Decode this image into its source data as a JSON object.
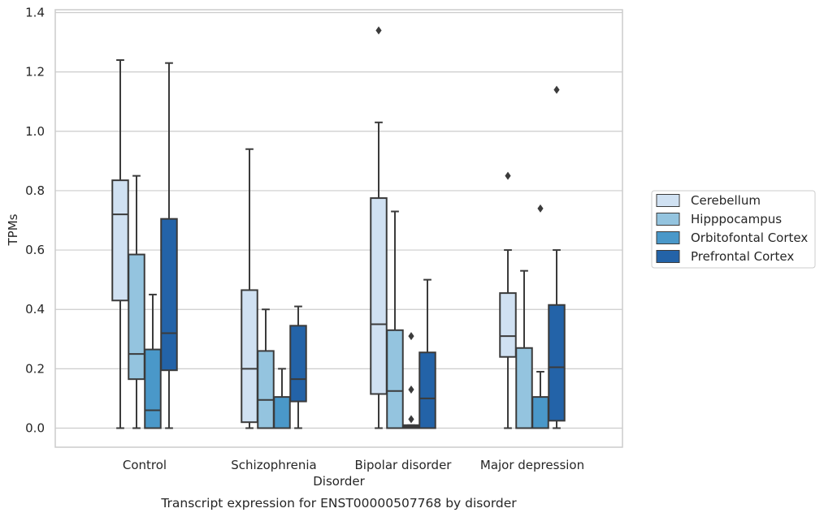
{
  "chart_data": {
    "type": "box",
    "caption": "Transcript expression for ENST00000507768 by disorder",
    "xlabel": "Disorder",
    "ylabel": "TPMs",
    "ylim": [
      -0.063,
      1.41
    ],
    "yticks": [
      "0.0",
      "0.2",
      "0.4",
      "0.6",
      "0.8",
      "1.0",
      "1.2",
      "1.4"
    ],
    "ytick_values": [
      0,
      0.2,
      0.4,
      0.6,
      0.8,
      1.0,
      1.2,
      1.4
    ],
    "grid": true,
    "legend_position": "right",
    "categories": [
      "Control",
      "Schizophrenia",
      "Bipolar disorder",
      "Major depression"
    ],
    "series": [
      {
        "name": "Cerebellum",
        "color": "#d0e1f2",
        "boxes": [
          {
            "whislo": 0.0,
            "q1": 0.43,
            "med": 0.72,
            "q3": 0.835,
            "whishi": 1.24,
            "fliers": []
          },
          {
            "whislo": 0.0,
            "q1": 0.02,
            "med": 0.2,
            "q3": 0.465,
            "whishi": 0.94,
            "fliers": []
          },
          {
            "whislo": 0.0,
            "q1": 0.115,
            "med": 0.35,
            "q3": 0.775,
            "whishi": 1.03,
            "fliers": [
              1.34
            ]
          },
          {
            "whislo": 0.0,
            "q1": 0.24,
            "med": 0.31,
            "q3": 0.455,
            "whishi": 0.6,
            "fliers": [
              0.85
            ]
          }
        ]
      },
      {
        "name": "Hipppocampus",
        "color": "#94c4df",
        "boxes": [
          {
            "whislo": 0.0,
            "q1": 0.165,
            "med": 0.25,
            "q3": 0.585,
            "whishi": 0.85,
            "fliers": []
          },
          {
            "whislo": 0.0,
            "q1": 0.0,
            "med": 0.095,
            "q3": 0.26,
            "whishi": 0.4,
            "fliers": []
          },
          {
            "whislo": 0.0,
            "q1": 0.0,
            "med": 0.125,
            "q3": 0.33,
            "whishi": 0.73,
            "fliers": []
          },
          {
            "whislo": 0.0,
            "q1": 0.0,
            "med": 0.0,
            "q3": 0.27,
            "whishi": 0.53,
            "fliers": []
          }
        ]
      },
      {
        "name": "Orbitofontal Cortex",
        "color": "#4a98c9",
        "boxes": [
          {
            "whislo": 0.0,
            "q1": 0.0,
            "med": 0.06,
            "q3": 0.265,
            "whishi": 0.45,
            "fliers": []
          },
          {
            "whislo": 0.0,
            "q1": 0.0,
            "med": 0.0,
            "q3": 0.105,
            "whishi": 0.2,
            "fliers": []
          },
          {
            "whislo": 0.0,
            "q1": 0.0,
            "med": 0.005,
            "q3": 0.01,
            "whishi": 0.01,
            "fliers": [
              0.31,
              0.13,
              0.03
            ]
          },
          {
            "whislo": 0.0,
            "q1": 0.0,
            "med": 0.0,
            "q3": 0.105,
            "whishi": 0.19,
            "fliers": [
              0.74
            ]
          }
        ]
      },
      {
        "name": "Prefrontal Cortex",
        "color": "#2363a8",
        "boxes": [
          {
            "whislo": 0.0,
            "q1": 0.195,
            "med": 0.32,
            "q3": 0.705,
            "whishi": 1.23,
            "fliers": []
          },
          {
            "whislo": 0.0,
            "q1": 0.09,
            "med": 0.165,
            "q3": 0.345,
            "whishi": 0.41,
            "fliers": []
          },
          {
            "whislo": 0.0,
            "q1": 0.0,
            "med": 0.1,
            "q3": 0.255,
            "whishi": 0.5,
            "fliers": []
          },
          {
            "whislo": 0.0,
            "q1": 0.025,
            "med": 0.205,
            "q3": 0.415,
            "whishi": 0.6,
            "fliers": [
              1.14
            ]
          }
        ]
      }
    ]
  }
}
